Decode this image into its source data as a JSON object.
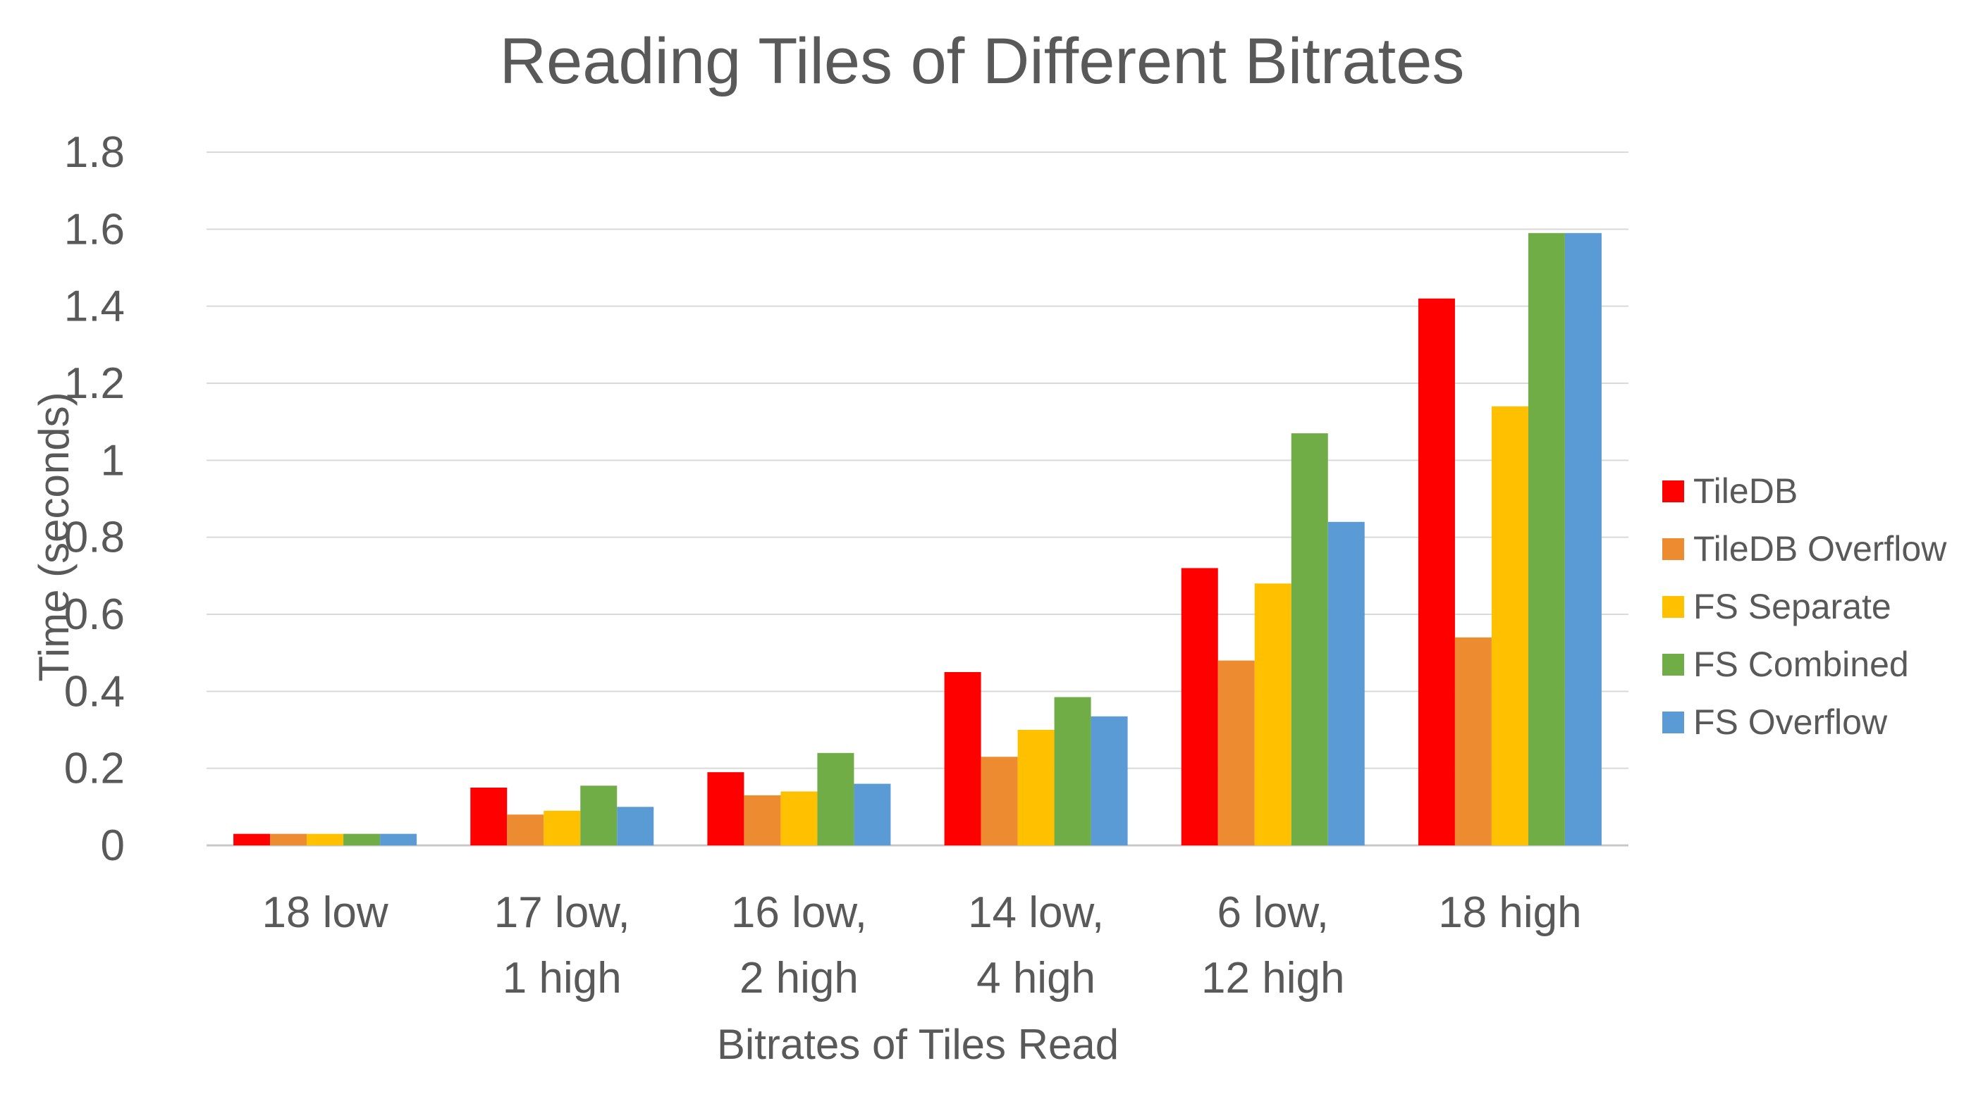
{
  "chart_data": {
    "type": "bar",
    "title": "Reading Tiles of Different Bitrates",
    "xlabel": "Bitrates of Tiles Read",
    "ylabel": "Time (seconds)",
    "ylim": [
      0,
      1.8
    ],
    "yticks": [
      0,
      0.2,
      0.4,
      0.6,
      0.8,
      1,
      1.2,
      1.4,
      1.6,
      1.8
    ],
    "ytick_labels": [
      "0",
      "0.2",
      "0.4",
      "0.6",
      "0.8",
      "1",
      "1.2",
      "1.4",
      "1.6",
      "1.8"
    ],
    "grid": true,
    "legend_position": "right",
    "categories": [
      [
        "18 low"
      ],
      [
        "17 low,",
        "1 high"
      ],
      [
        "16 low,",
        "2 high"
      ],
      [
        "14 low,",
        "4 high"
      ],
      [
        "6 low,",
        "12 high"
      ],
      [
        "18 high"
      ]
    ],
    "series": [
      {
        "name": "TileDB",
        "color": "#FF0000",
        "values": [
          0.03,
          0.15,
          0.19,
          0.45,
          0.72,
          1.42
        ]
      },
      {
        "name": "TileDB Overflow",
        "color": "#ED8B30",
        "values": [
          0.03,
          0.08,
          0.13,
          0.23,
          0.48,
          0.54
        ]
      },
      {
        "name": "FS Separate",
        "color": "#FFC000",
        "values": [
          0.03,
          0.09,
          0.14,
          0.3,
          0.68,
          1.14
        ]
      },
      {
        "name": "FS Combined",
        "color": "#70AD47",
        "values": [
          0.03,
          0.155,
          0.24,
          0.385,
          1.07,
          1.59
        ]
      },
      {
        "name": "FS Overflow",
        "color": "#5B9BD5",
        "values": [
          0.03,
          0.1,
          0.16,
          0.335,
          0.84,
          1.59
        ]
      }
    ]
  }
}
